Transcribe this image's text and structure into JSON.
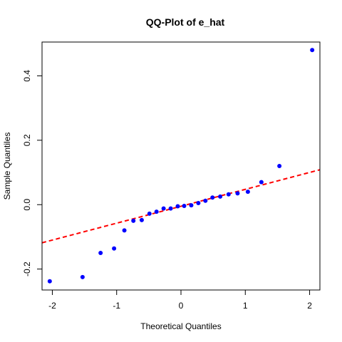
{
  "chart_data": {
    "type": "scatter",
    "title": "QQ-Plot of e_hat",
    "xlabel": "Theoretical Quantiles",
    "ylabel": "Sample Quantiles",
    "xlim": [
      -2.16,
      2.16
    ],
    "ylim": [
      -0.265,
      0.505
    ],
    "xticks": [
      -2,
      -1,
      0,
      1,
      2
    ],
    "yticks": [
      -0.2,
      0.0,
      0.2,
      0.4
    ],
    "xtick_labels": [
      "-2",
      "-1",
      "0",
      "1",
      "2"
    ],
    "ytick_labels": [
      "-0.2",
      "0.0",
      "0.2",
      "0.4"
    ],
    "grid": false,
    "legend": "none",
    "colors": {
      "points": "#0000ff",
      "reference_line": "#ff0000"
    },
    "points": [
      {
        "x": -2.04,
        "y": -0.238
      },
      {
        "x": -1.53,
        "y": -0.225
      },
      {
        "x": -1.25,
        "y": -0.15
      },
      {
        "x": -1.04,
        "y": -0.136
      },
      {
        "x": -0.88,
        "y": -0.08
      },
      {
        "x": -0.74,
        "y": -0.05
      },
      {
        "x": -0.61,
        "y": -0.048
      },
      {
        "x": -0.49,
        "y": -0.028
      },
      {
        "x": -0.38,
        "y": -0.022
      },
      {
        "x": -0.27,
        "y": -0.012
      },
      {
        "x": -0.16,
        "y": -0.012
      },
      {
        "x": -0.05,
        "y": -0.005
      },
      {
        "x": 0.05,
        "y": -0.004
      },
      {
        "x": 0.16,
        "y": -0.002
      },
      {
        "x": 0.27,
        "y": 0.005
      },
      {
        "x": 0.38,
        "y": 0.012
      },
      {
        "x": 0.49,
        "y": 0.022
      },
      {
        "x": 0.61,
        "y": 0.025
      },
      {
        "x": 0.74,
        "y": 0.032
      },
      {
        "x": 0.88,
        "y": 0.035
      },
      {
        "x": 1.04,
        "y": 0.04
      },
      {
        "x": 1.25,
        "y": 0.07
      },
      {
        "x": 1.53,
        "y": 0.12
      },
      {
        "x": 2.04,
        "y": 0.48
      }
    ],
    "reference_line": {
      "style": "dashed",
      "intercept": -0.005,
      "slope": 0.0525
    }
  }
}
